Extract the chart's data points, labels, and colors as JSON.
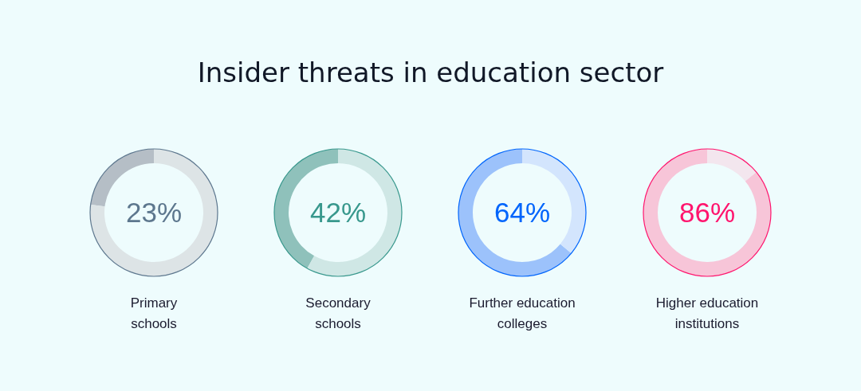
{
  "chart_data": [
    {
      "type": "donut",
      "title": "Insider threats in education sector",
      "xlabel": "Primary\nschools",
      "categories": [
        null,
        null
      ],
      "values": [
        23,
        77
      ],
      "colors": [
        "#b5bec6",
        "#dde4e6"
      ],
      "value_labels": [
        "23%",
        null
      ]
    },
    {
      "type": "donut",
      "xlabel": "Secondary\nschools",
      "categories": [
        null,
        null
      ],
      "values": [
        42,
        58
      ],
      "colors": [
        "#8fc1bb",
        "#cfe7e5"
      ],
      "value_labels": [
        "42%",
        null
      ]
    },
    {
      "type": "donut",
      "xlabel": "Further education\ncolleges",
      "categories": [
        null,
        null
      ],
      "values": [
        64,
        36
      ],
      "colors": [
        "#9cc2fb",
        "#d3e5fd"
      ],
      "value_labels": [
        "64%",
        null
      ]
    },
    {
      "type": "donut",
      "xlabel": "Higher education\ninstitutions",
      "categories": [
        null,
        null
      ],
      "values": [
        86,
        14
      ],
      "colors": [
        "#f7c5d8",
        "#f3e6ee"
      ],
      "value_labels": [
        "86%",
        null
      ]
    }
  ]
}
